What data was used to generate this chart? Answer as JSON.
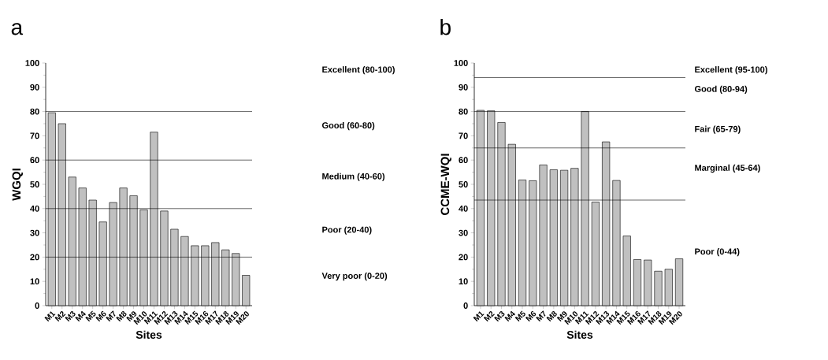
{
  "chart_data": [
    {
      "type": "bar",
      "title": "a",
      "xlabel": "Sites",
      "ylabel": "WGQI",
      "categories": [
        "M1",
        "M2",
        "M3",
        "M4",
        "M5",
        "M6",
        "M7",
        "M8",
        "M9",
        "M10",
        "M11",
        "M12",
        "M13",
        "M14",
        "M15",
        "M16",
        "M17",
        "M18",
        "M19",
        "M20"
      ],
      "values": [
        79.5,
        75,
        53,
        48.5,
        43.5,
        34.5,
        42.5,
        48.5,
        45.3,
        39.5,
        71.5,
        39,
        31.5,
        28.5,
        24.7,
        24.7,
        26,
        23,
        21.5,
        12.5
      ],
      "color": "#c0c0c0",
      "ylim": [
        0,
        100
      ],
      "yticks": [
        0,
        10,
        20,
        30,
        40,
        50,
        60,
        70,
        80,
        90,
        100
      ],
      "ref_lines": [
        {
          "axis": "y",
          "value": 20
        },
        {
          "axis": "y",
          "value": 40
        },
        {
          "axis": "y",
          "value": 60
        },
        {
          "axis": "y",
          "value": 80
        }
      ],
      "annotations": [
        "Excellent (80-100)",
        "Good (60-80)",
        "Medium (40-60)",
        "Poor (20-40)",
        "Very poor (0-20)"
      ]
    },
    {
      "type": "bar",
      "title": "b",
      "xlabel": "Sites",
      "ylabel": "CCME-WQI",
      "categories": [
        "M1",
        "M2",
        "M3",
        "M4",
        "M5",
        "M6",
        "M7",
        "M8",
        "M9",
        "M10",
        "M11",
        "M12",
        "M13",
        "M14",
        "M15",
        "M16",
        "M17",
        "M18",
        "M19",
        "M20"
      ],
      "values": [
        80.5,
        80.3,
        75.5,
        66.5,
        51.8,
        51.5,
        58,
        56,
        55.8,
        56.6,
        80,
        42.7,
        67.5,
        51.6,
        28.7,
        19,
        18.8,
        14.2,
        15,
        19.3
      ],
      "color": "#c0c0c0",
      "ylim": [
        0,
        100
      ],
      "yticks": [
        0,
        10,
        20,
        30,
        40,
        50,
        60,
        70,
        80,
        90,
        100
      ],
      "ref_lines": [
        {
          "axis": "y",
          "value": 43.5
        },
        {
          "axis": "y",
          "value": 65
        },
        {
          "axis": "y",
          "value": 80
        },
        {
          "axis": "y",
          "value": 94
        }
      ],
      "annotations": [
        "Excellent (95-100)",
        "Good (80-94)",
        "Fair (65-79)",
        "Marginal (45-64)",
        "Poor (0-44)"
      ]
    }
  ]
}
